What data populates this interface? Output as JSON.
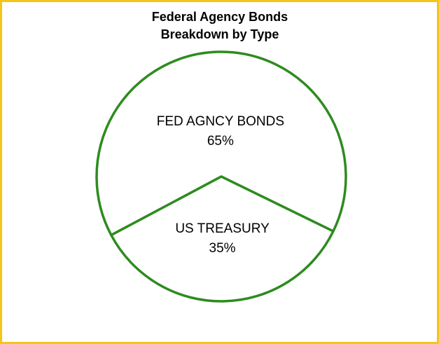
{
  "chart_data": {
    "type": "pie",
    "title": [
      "Federal Agency Bonds",
      "Breakdown  by Type"
    ],
    "categories": [
      "FED AGNCY BONDS",
      "US TREASURY"
    ],
    "values": [
      65,
      35
    ],
    "value_labels": [
      "65%",
      "35%"
    ],
    "color": "#ffffff",
    "edge_color": "#2e8b1f"
  }
}
